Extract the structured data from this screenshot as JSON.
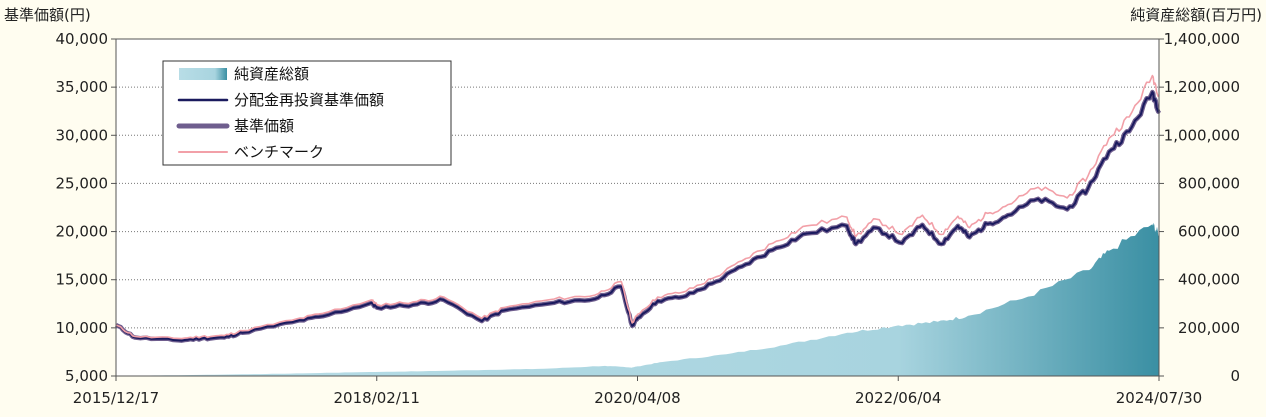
{
  "chart_data": {
    "type": "line",
    "left_axis": {
      "label": "基準価額(円)",
      "min": 5000,
      "max": 40000,
      "ticks": [
        5000,
        10000,
        15000,
        20000,
        25000,
        30000,
        35000,
        40000
      ],
      "tick_labels": [
        "5,000",
        "10,000",
        "15,000",
        "20,000",
        "25,000",
        "30,000",
        "35,000",
        "40,000"
      ]
    },
    "right_axis": {
      "label": "純資産総額(百万円)",
      "min": 0,
      "max": 1400000,
      "ticks": [
        0,
        200000,
        400000,
        600000,
        800000,
        1000000,
        1200000,
        1400000
      ],
      "tick_labels": [
        "0",
        "200,000",
        "400,000",
        "600,000",
        "800,000",
        "1,000,000",
        "1,200,000",
        "1,400,000"
      ]
    },
    "x_axis": {
      "start": "2015-12-17",
      "end": "2024-07-30",
      "ticks": [
        "2015-12-17",
        "2018-02-11",
        "2020-04-08",
        "2022-06-04",
        "2024-07-30"
      ],
      "tick_labels": [
        "2015/12/17",
        "2018/02/11",
        "2020/04/08",
        "2022/06/04",
        "2024/07/30"
      ]
    },
    "grid": {
      "horizontal": true,
      "vertical": false,
      "style": "dotted"
    },
    "legend": {
      "position": "top-left",
      "entries": [
        "純資産総額",
        "分配金再投資基準価額",
        "基準価額",
        "ベンチマーク"
      ]
    },
    "series": [
      {
        "name": "純資産総額",
        "axis": "right",
        "style": "area",
        "color": "#3a8fa3",
        "x": [
          "2015-12-17",
          "2016-06-01",
          "2017-01-01",
          "2017-07-01",
          "2018-01-01",
          "2018-07-01",
          "2019-01-01",
          "2019-07-01",
          "2020-01-01",
          "2020-03-20",
          "2020-04-08",
          "2020-07-01",
          "2021-01-01",
          "2021-07-01",
          "2022-01-01",
          "2022-06-04",
          "2022-10-01",
          "2023-01-01",
          "2023-07-01",
          "2024-01-01",
          "2024-03-01",
          "2024-07-10",
          "2024-07-30"
        ],
        "values": [
          1000,
          3000,
          7000,
          11000,
          16000,
          20000,
          25000,
          30000,
          42000,
          35000,
          40000,
          60000,
          90000,
          130000,
          180000,
          210000,
          225000,
          250000,
          330000,
          440000,
          520000,
          630000,
          590000
        ]
      },
      {
        "name": "分配金再投資基準価額",
        "axis": "left",
        "style": "line",
        "color": "#1a1a5e",
        "x": [
          "2015-12-17",
          "2016-02-12",
          "2016-06-24",
          "2016-09-01",
          "2016-11-08",
          "2017-01-01",
          "2017-06-01",
          "2017-09-01",
          "2018-01-26",
          "2018-02-11",
          "2018-06-01",
          "2018-09-01",
          "2018-12-25",
          "2019-03-01",
          "2019-08-01",
          "2019-12-01",
          "2020-02-19",
          "2020-03-23",
          "2020-04-08",
          "2020-06-08",
          "2020-09-01",
          "2020-12-01",
          "2021-03-01",
          "2021-06-01",
          "2021-09-01",
          "2021-12-31",
          "2022-01-27",
          "2022-03-29",
          "2022-06-16",
          "2022-08-16",
          "2022-10-12",
          "2022-12-01",
          "2023-01-05",
          "2023-03-01",
          "2023-05-01",
          "2023-07-31",
          "2023-10-27",
          "2023-12-29",
          "2024-03-01",
          "2024-05-01",
          "2024-07-10",
          "2024-07-30"
        ],
        "values": [
          10300,
          9000,
          8700,
          8900,
          9000,
          9500,
          10600,
          11200,
          12600,
          12100,
          12400,
          12900,
          10700,
          11800,
          12600,
          13000,
          14300,
          10200,
          11000,
          12800,
          13300,
          14800,
          16600,
          18300,
          19800,
          20600,
          18700,
          20400,
          18800,
          20700,
          18700,
          20600,
          19400,
          20800,
          21700,
          23400,
          22300,
          24500,
          28300,
          30400,
          34500,
          32600
        ]
      },
      {
        "name": "基準価額",
        "axis": "left",
        "style": "line",
        "color": "#6f5e8e",
        "x": [
          "2015-12-17",
          "2016-02-12",
          "2016-06-24",
          "2016-09-01",
          "2016-11-08",
          "2017-01-01",
          "2017-06-01",
          "2017-09-01",
          "2018-01-26",
          "2018-02-11",
          "2018-06-01",
          "2018-09-01",
          "2018-12-25",
          "2019-03-01",
          "2019-08-01",
          "2019-12-01",
          "2020-02-19",
          "2020-03-23",
          "2020-04-08",
          "2020-06-08",
          "2020-09-01",
          "2020-12-01",
          "2021-03-01",
          "2021-06-01",
          "2021-09-01",
          "2021-12-31",
          "2022-01-27",
          "2022-03-29",
          "2022-06-16",
          "2022-08-16",
          "2022-10-12",
          "2022-12-01",
          "2023-01-05",
          "2023-03-01",
          "2023-05-01",
          "2023-07-31",
          "2023-10-27",
          "2023-12-29",
          "2024-03-01",
          "2024-05-01",
          "2024-07-10",
          "2024-07-30"
        ],
        "values": [
          10300,
          9000,
          8700,
          8900,
          9000,
          9500,
          10600,
          11200,
          12600,
          12100,
          12400,
          12900,
          10700,
          11800,
          12600,
          13000,
          14300,
          10200,
          11000,
          12800,
          13300,
          14800,
          16600,
          18300,
          19800,
          20600,
          18700,
          20400,
          18800,
          20700,
          18700,
          20600,
          19400,
          20800,
          21700,
          23400,
          22300,
          24500,
          28300,
          30400,
          34500,
          32600
        ]
      },
      {
        "name": "ベンチマーク",
        "axis": "left",
        "style": "line",
        "color": "#f2a0a8",
        "x": [
          "2015-12-17",
          "2016-02-12",
          "2016-06-24",
          "2016-09-01",
          "2016-11-08",
          "2017-01-01",
          "2017-06-01",
          "2017-09-01",
          "2018-01-26",
          "2018-02-11",
          "2018-06-01",
          "2018-09-01",
          "2018-12-25",
          "2019-03-01",
          "2019-08-01",
          "2019-12-01",
          "2020-02-19",
          "2020-03-23",
          "2020-04-08",
          "2020-06-08",
          "2020-09-01",
          "2020-12-01",
          "2021-03-01",
          "2021-06-01",
          "2021-09-01",
          "2021-12-31",
          "2022-01-27",
          "2022-03-29",
          "2022-06-16",
          "2022-08-16",
          "2022-10-12",
          "2022-12-01",
          "2023-01-05",
          "2023-03-01",
          "2023-05-01",
          "2023-07-31",
          "2023-10-27",
          "2023-12-29",
          "2024-03-01",
          "2024-05-01",
          "2024-07-10",
          "2024-07-30"
        ],
        "values": [
          10300,
          9100,
          8900,
          9100,
          9200,
          9700,
          10800,
          11500,
          12900,
          12400,
          12700,
          13200,
          11000,
          12100,
          13000,
          13400,
          14800,
          10500,
          11400,
          13200,
          13800,
          15300,
          17200,
          19000,
          20600,
          21500,
          19500,
          21300,
          19700,
          21700,
          19700,
          21600,
          20400,
          21900,
          22800,
          24600,
          23500,
          25800,
          29700,
          31900,
          36200,
          34200
        ]
      }
    ]
  }
}
